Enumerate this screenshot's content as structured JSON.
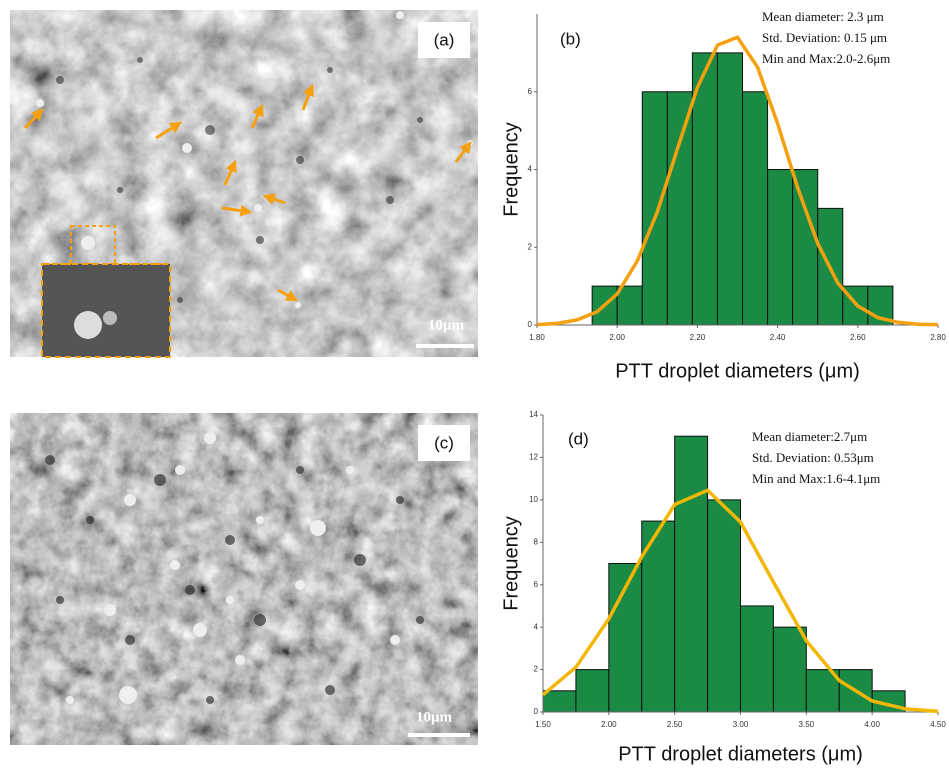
{
  "images": [
    {
      "label": "(a)",
      "scale_bar": "10μm"
    },
    {
      "label": "(c)",
      "scale_bar": "10μm"
    }
  ],
  "chart_data": [
    {
      "type": "histogram",
      "panel_label": "(b)",
      "annotations": [
        "Mean diameter: 2.3 μm",
        "Std. Deviation: 0.15 μm",
        "Min and Max:2.0-2.6μm"
      ],
      "x_label": "PTT droplet diameters (μm)",
      "y_label": "Frequency",
      "bins": [
        1.9375,
        2.0,
        2.0625,
        2.125,
        2.1875,
        2.25,
        2.3125,
        2.375,
        2.4375,
        2.5,
        2.5625,
        2.625,
        2.6875
      ],
      "values": [
        1,
        1,
        6,
        6,
        7,
        7,
        6,
        4,
        4,
        3,
        1,
        1
      ],
      "color": "#1a8a44",
      "curve_color": "#f5a10f",
      "curve_x": [
        1.8,
        1.85,
        1.9,
        1.95,
        2.0,
        2.05,
        2.1,
        2.15,
        2.2,
        2.25,
        2.3,
        2.35,
        2.4,
        2.45,
        2.5,
        2.55,
        2.6,
        2.65,
        2.7,
        2.75,
        2.8
      ],
      "curve_y": [
        0.01,
        0.04,
        0.13,
        0.34,
        0.8,
        1.64,
        2.91,
        4.52,
        6.11,
        7.2,
        7.4,
        6.63,
        5.18,
        3.53,
        2.1,
        1.08,
        0.49,
        0.19,
        0.07,
        0.02,
        0.01
      ],
      "xlim": [
        1.8,
        2.8
      ],
      "xticks": [
        {
          "value": 1.8,
          "label": "1.80"
        },
        {
          "value": 2.0,
          "label": "2.00"
        },
        {
          "value": 2.2,
          "label": "2.20"
        },
        {
          "value": 2.4,
          "label": "2.40"
        },
        {
          "value": 2.6,
          "label": "2.60"
        },
        {
          "value": 2.8,
          "label": "2.80"
        }
      ],
      "ylim": [
        0,
        8
      ],
      "yticks": [
        0,
        2,
        4,
        6
      ]
    },
    {
      "type": "histogram",
      "panel_label": "(d)",
      "annotations": [
        "Mean diameter:2.7μm",
        "Std. Deviation: 0.53μm",
        "Min and Max:1.6-4.1μm"
      ],
      "x_label": "PTT droplet diameters (μm)",
      "y_label": "Frequency",
      "bins": [
        1.5,
        1.75,
        2.0,
        2.25,
        2.5,
        2.75,
        3.0,
        3.25,
        3.5,
        3.75,
        4.0,
        4.25
      ],
      "values": [
        1,
        2,
        7,
        9,
        13,
        10,
        5,
        4,
        2,
        2,
        1
      ],
      "color": "#1a8a44",
      "curve_color": "#f2b705",
      "curve_x": [
        1.5,
        1.75,
        2.0,
        2.25,
        2.5,
        2.75,
        3.0,
        3.25,
        3.5,
        3.75,
        4.0,
        4.25,
        4.5
      ],
      "curve_y": [
        0.81,
        2.11,
        4.39,
        7.32,
        9.78,
        10.45,
        8.95,
        6.13,
        3.36,
        1.48,
        0.52,
        0.15,
        0.03
      ],
      "xlim": [
        1.5,
        4.5
      ],
      "xticks": [
        {
          "value": 1.5,
          "label": "1.50"
        },
        {
          "value": 2.0,
          "label": "2.00"
        },
        {
          "value": 2.5,
          "label": "2.50"
        },
        {
          "value": 3.0,
          "label": "3.00"
        },
        {
          "value": 3.5,
          "label": "3.50"
        },
        {
          "value": 4.0,
          "label": "4.00"
        },
        {
          "value": 4.5,
          "label": "4.50"
        }
      ],
      "ylim": [
        0,
        14
      ],
      "yticks": [
        0,
        2,
        4,
        6,
        8,
        10,
        12,
        14
      ]
    }
  ]
}
